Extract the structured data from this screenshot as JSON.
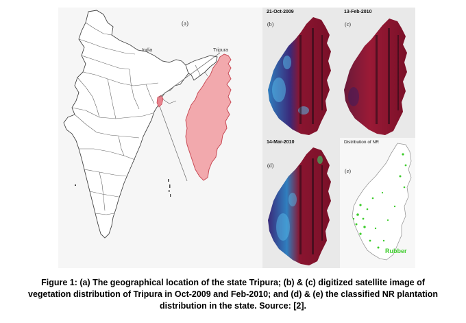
{
  "figure": {
    "panel_a": {
      "label": "(a)",
      "country_label": "India",
      "state_label": "Tripura",
      "state_fill": "#f2a9ad",
      "state_outline": "#c84a55"
    },
    "panel_b": {
      "date": "21-Oct-2009",
      "label": "(b)"
    },
    "panel_c": {
      "date": "13-Feb-2010",
      "label": "(c)"
    },
    "panel_d": {
      "date": "14-Mar-2010",
      "label": "(d)"
    },
    "panel_e": {
      "title": "Distribution of NR",
      "label": "(e)",
      "legend": "Rubber",
      "legend_color": "#3ccc2a"
    },
    "colors": {
      "satellite_red": "#8a1530",
      "satellite_blue": "#2f7fbf",
      "satellite_purple": "#3a2a7a"
    }
  },
  "caption": {
    "line1": "Figure 1: (a) The geographical location of the state Tripura; (b) & (c) digitized satellite image of",
    "line2": "vegetation distribution of Tripura in Oct-2009 and Feb-2010;  and (d) & (e)  the classified NR plantation",
    "line3": "distribution in the state. Source: [2]."
  }
}
